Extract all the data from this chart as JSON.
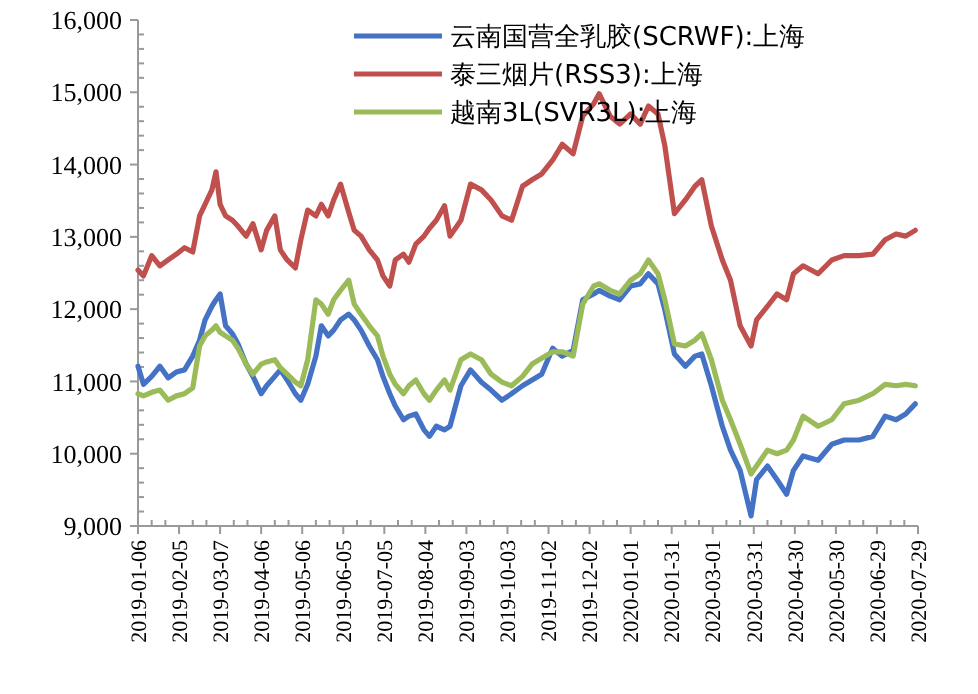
{
  "chart_data": {
    "type": "line",
    "legend": "top",
    "line_style": "solid",
    "marker": "none",
    "grid": false,
    "xlim": [
      "2019-01-06",
      "2020-07-29"
    ],
    "xticks": [
      "2019-01-06",
      "2019-02-05",
      "2019-03-07",
      "2019-04-06",
      "2019-05-06",
      "2019-06-05",
      "2019-07-05",
      "2019-08-04",
      "2019-09-03",
      "2019-10-03",
      "2019-11-02",
      "2019-12-02",
      "2020-01-01",
      "2020-01-31",
      "2020-03-01",
      "2020-03-31",
      "2020-04-30",
      "2020-05-30",
      "2020-06-29",
      "2020-07-29"
    ],
    "ylim": [
      9000,
      16000
    ],
    "yticks": [
      {
        "value": 9000,
        "label": "9,000"
      },
      {
        "value": 10000,
        "label": "10,000"
      },
      {
        "value": 11000,
        "label": "11,000"
      },
      {
        "value": 12000,
        "label": "12,000"
      },
      {
        "value": 13000,
        "label": "13,000"
      },
      {
        "value": 14000,
        "label": "14,000"
      },
      {
        "value": 15000,
        "label": "15,000"
      },
      {
        "value": 16000,
        "label": "16,000"
      }
    ],
    "x": [
      "2019-01-06",
      "2019-01-10",
      "2019-01-16",
      "2019-01-22",
      "2019-01-28",
      "2019-02-03",
      "2019-02-09",
      "2019-02-15",
      "2019-02-20",
      "2019-02-24",
      "2019-03-01",
      "2019-03-04",
      "2019-03-07",
      "2019-03-11",
      "2019-03-16",
      "2019-03-20",
      "2019-03-26",
      "2019-03-31",
      "2019-04-06",
      "2019-04-10",
      "2019-04-16",
      "2019-04-20",
      "2019-04-25",
      "2019-05-01",
      "2019-05-05",
      "2019-05-10",
      "2019-05-16",
      "2019-05-20",
      "2019-05-25",
      "2019-05-29",
      "2019-06-03",
      "2019-06-09",
      "2019-06-13",
      "2019-06-18",
      "2019-06-24",
      "2019-06-30",
      "2019-07-04",
      "2019-07-09",
      "2019-07-13",
      "2019-07-19",
      "2019-07-23",
      "2019-07-28",
      "2019-08-03",
      "2019-08-07",
      "2019-08-12",
      "2019-08-18",
      "2019-08-22",
      "2019-08-30",
      "2019-09-06",
      "2019-09-14",
      "2019-09-21",
      "2019-09-29",
      "2019-10-06",
      "2019-10-14",
      "2019-10-21",
      "2019-10-28",
      "2019-11-05",
      "2019-11-12",
      "2019-11-20",
      "2019-11-27",
      "2019-12-05",
      "2019-12-09",
      "2019-12-17",
      "2019-12-24",
      "2020-01-01",
      "2020-01-08",
      "2020-01-14",
      "2020-01-21",
      "2020-01-26",
      "2020-02-02",
      "2020-02-10",
      "2020-02-17",
      "2020-02-22",
      "2020-02-29",
      "2020-03-08",
      "2020-03-14",
      "2020-03-21",
      "2020-03-29",
      "2020-04-02",
      "2020-04-10",
      "2020-04-17",
      "2020-04-24",
      "2020-04-29",
      "2020-05-06",
      "2020-05-17",
      "2020-05-27",
      "2020-06-05",
      "2020-06-16",
      "2020-06-26",
      "2020-07-05",
      "2020-07-13",
      "2020-07-20",
      "2020-07-27"
    ],
    "series": [
      {
        "name": "云南国营全乳胶(SCRWF):上海",
        "color": "#4472c4",
        "values": [
          11210,
          10960,
          11070,
          11210,
          11050,
          11130,
          11160,
          11350,
          11570,
          11850,
          12040,
          12130,
          12210,
          11770,
          11660,
          11520,
          11240,
          11070,
          10830,
          10940,
          11070,
          11160,
          11020,
          10830,
          10740,
          10960,
          11350,
          11770,
          11630,
          11710,
          11850,
          11930,
          11850,
          11710,
          11490,
          11300,
          11070,
          10830,
          10660,
          10470,
          10520,
          10550,
          10330,
          10240,
          10380,
          10330,
          10380,
          10940,
          11160,
          10990,
          10880,
          10740,
          10830,
          10940,
          11020,
          11100,
          11460,
          11350,
          11430,
          12130,
          12210,
          12260,
          12180,
          12130,
          12320,
          12350,
          12490,
          12350,
          11990,
          11380,
          11210,
          11350,
          11380,
          10940,
          10380,
          10050,
          9770,
          9140,
          9640,
          9830,
          9640,
          9440,
          9770,
          9970,
          9910,
          10130,
          10190,
          10190,
          10240,
          10520,
          10470,
          10550,
          10690
        ]
      },
      {
        "name": "泰三烟片(RSS3):上海",
        "color": "#c0504d",
        "values": [
          12540,
          12460,
          12740,
          12600,
          12680,
          12760,
          12850,
          12790,
          13290,
          13450,
          13650,
          13900,
          13450,
          13290,
          13230,
          13150,
          13010,
          13180,
          12820,
          13090,
          13290,
          12820,
          12680,
          12570,
          12960,
          13370,
          13290,
          13450,
          13290,
          13510,
          13730,
          13340,
          13090,
          13010,
          12820,
          12680,
          12460,
          12320,
          12680,
          12760,
          12650,
          12900,
          13010,
          13120,
          13230,
          13430,
          13010,
          13230,
          13730,
          13650,
          13510,
          13290,
          13230,
          13700,
          13790,
          13870,
          14060,
          14280,
          14150,
          14670,
          14840,
          14980,
          14670,
          14560,
          14700,
          14560,
          14810,
          14700,
          14260,
          13320,
          13510,
          13700,
          13790,
          13150,
          12680,
          12400,
          11770,
          11490,
          11850,
          12040,
          12210,
          12130,
          12490,
          12600,
          12490,
          12680,
          12740,
          12740,
          12760,
          12960,
          13040,
          13010,
          13090
        ]
      },
      {
        "name": "越南3L(SVR3L):上海",
        "color": "#9bbb59",
        "values": [
          10830,
          10800,
          10850,
          10880,
          10740,
          10800,
          10830,
          10910,
          11490,
          11630,
          11710,
          11770,
          11680,
          11630,
          11570,
          11460,
          11240,
          11100,
          11240,
          11270,
          11300,
          11190,
          11100,
          10990,
          10940,
          11300,
          12130,
          12070,
          11930,
          12130,
          12260,
          12400,
          12070,
          11930,
          11770,
          11630,
          11350,
          11100,
          10960,
          10830,
          10940,
          11020,
          10830,
          10740,
          10880,
          11020,
          10880,
          11300,
          11380,
          11300,
          11100,
          10990,
          10940,
          11070,
          11240,
          11320,
          11410,
          11410,
          11350,
          12070,
          12320,
          12350,
          12260,
          12210,
          12400,
          12490,
          12680,
          12490,
          12130,
          11520,
          11490,
          11570,
          11660,
          11300,
          10740,
          10470,
          10130,
          9720,
          9830,
          10050,
          10000,
          10050,
          10190,
          10520,
          10380,
          10470,
          10690,
          10740,
          10830,
          10960,
          10940,
          10960,
          10940
        ]
      }
    ]
  }
}
